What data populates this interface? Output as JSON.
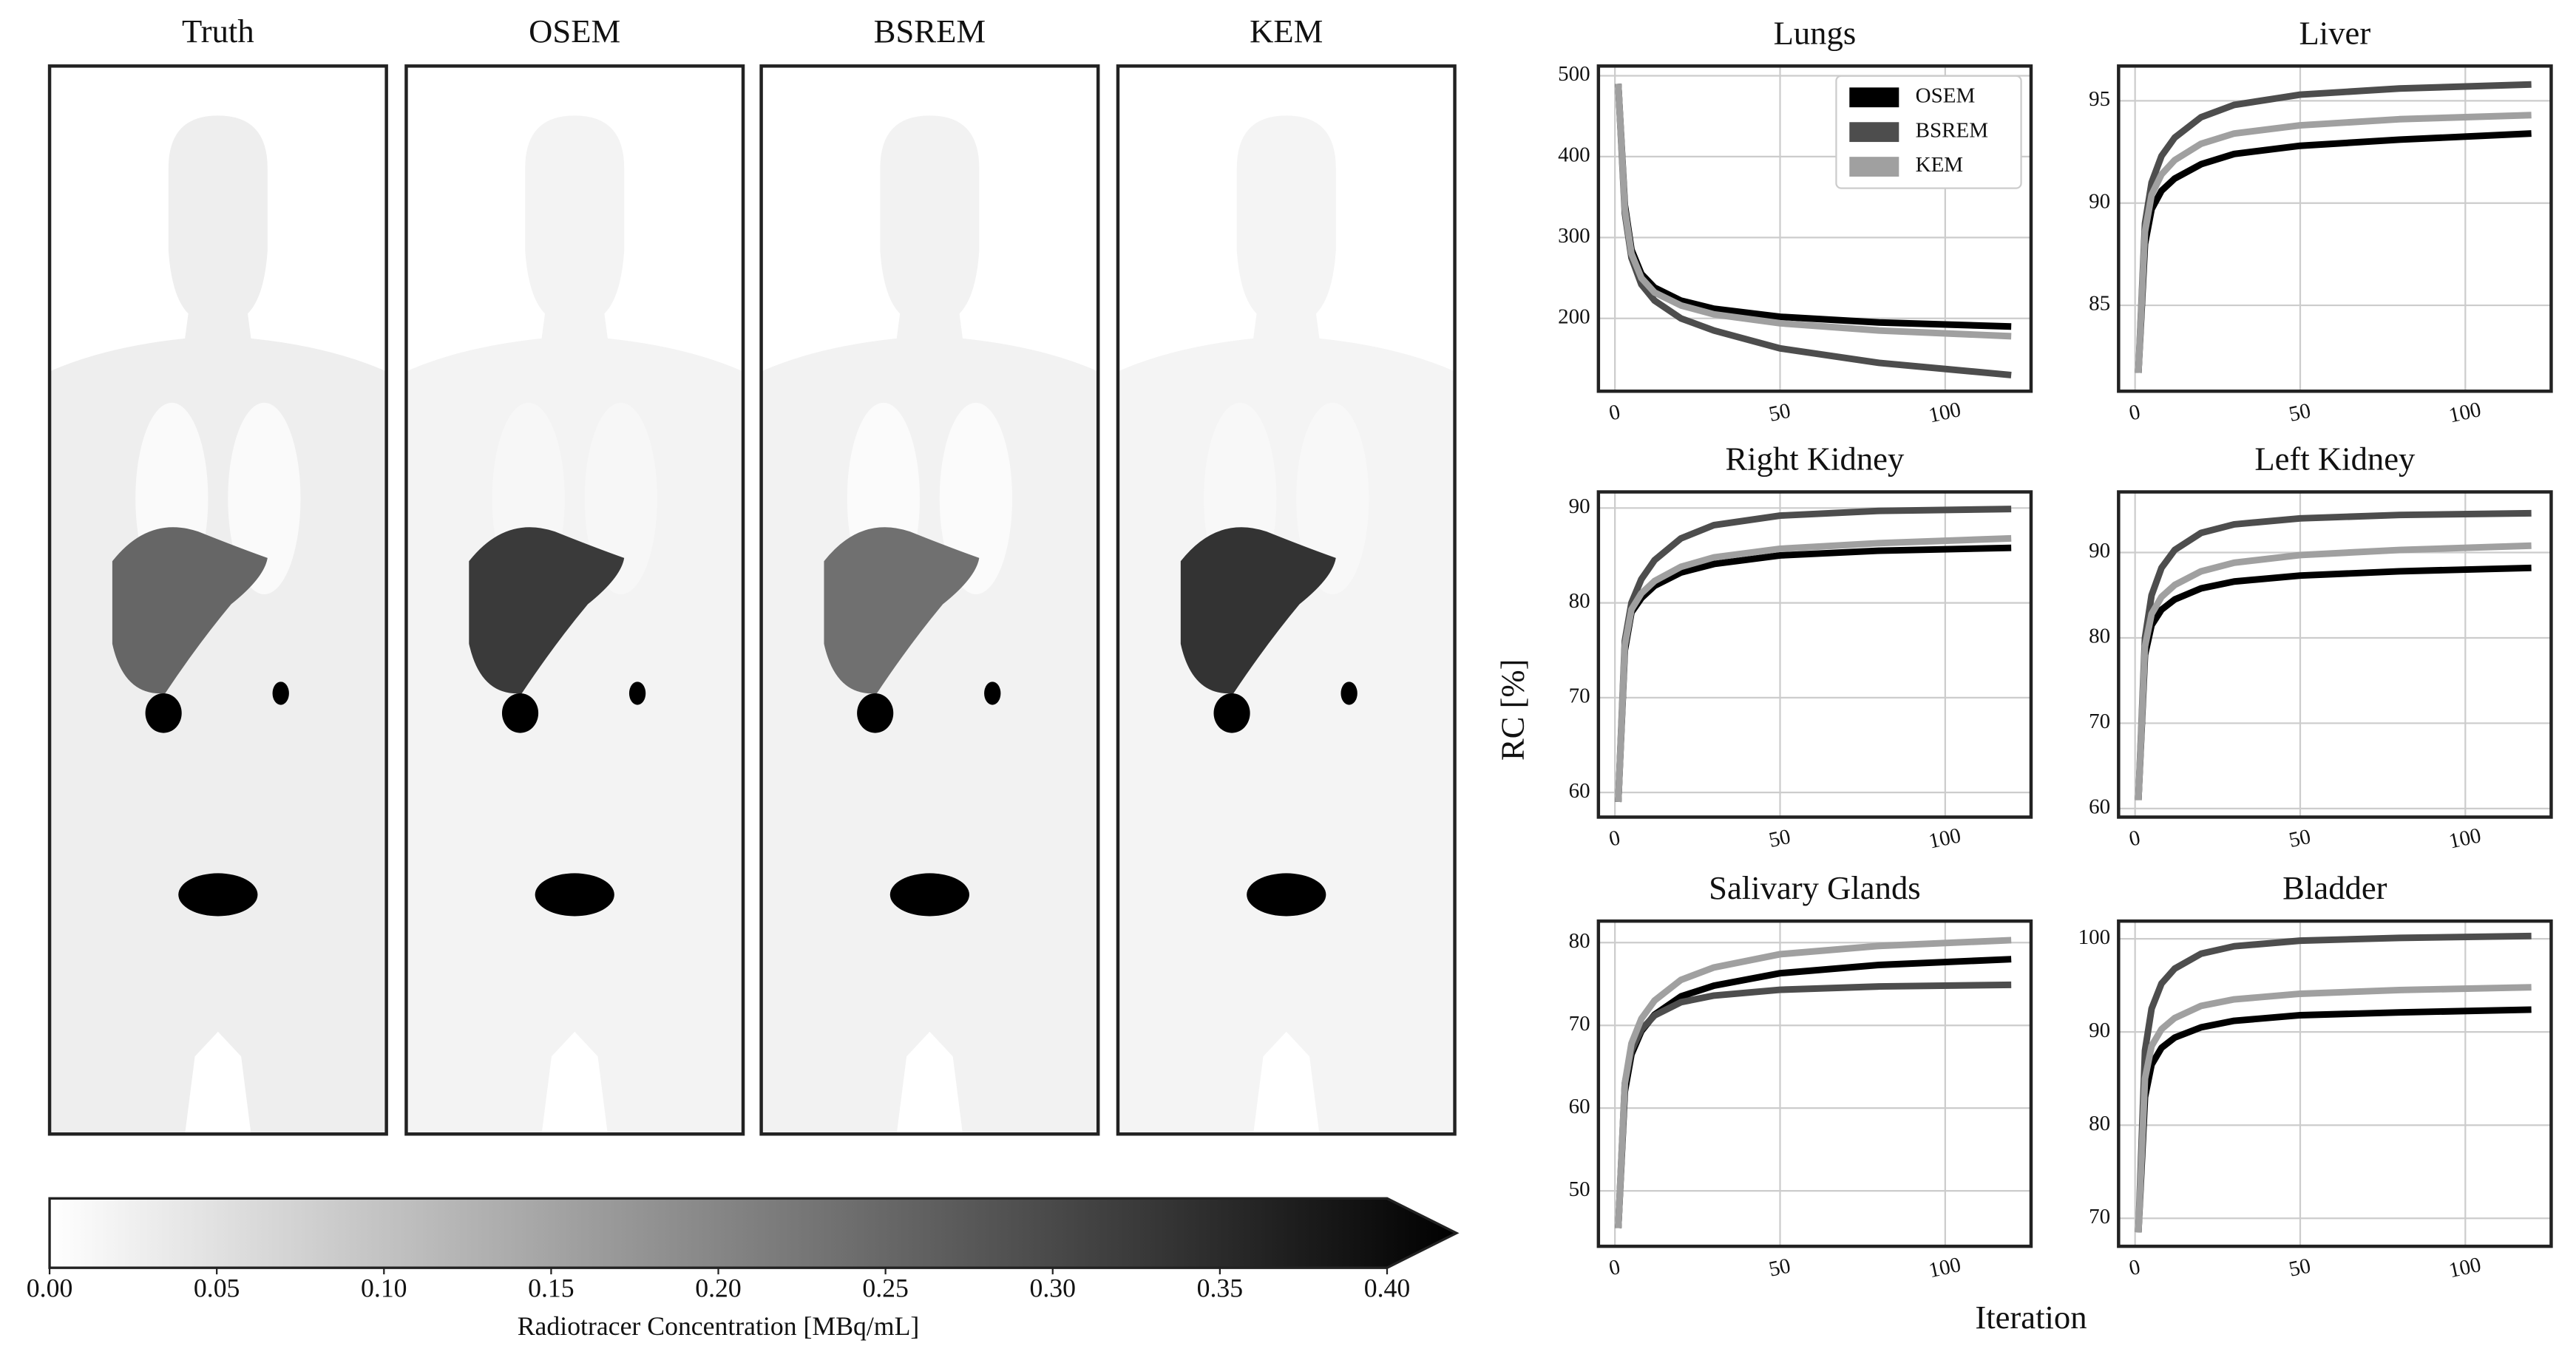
{
  "image_panels": {
    "titles": [
      "Truth",
      "OSEM",
      "BSREM",
      "KEM"
    ]
  },
  "colorbar": {
    "label": "Radiotracer Concentration [MBq/mL]",
    "lim": [
      0,
      0.4
    ],
    "ticks": [
      {
        "value": 0,
        "label": "0.00"
      },
      {
        "value": 0.05,
        "label": "0.05"
      },
      {
        "value": 0.1,
        "label": "0.10"
      },
      {
        "value": 0.15,
        "label": "0.15"
      },
      {
        "value": 0.2,
        "label": "0.20"
      },
      {
        "value": 0.25,
        "label": "0.25"
      },
      {
        "value": 0.3,
        "label": "0.30"
      },
      {
        "value": 0.35,
        "label": "0.35"
      },
      {
        "value": 0.4,
        "label": "0.40"
      }
    ]
  },
  "ylabel": "RC [%]",
  "xlabel": "Iteration",
  "chart_data": [
    {
      "type": "line",
      "title": "Lungs",
      "x": [
        1,
        3,
        5,
        8,
        12,
        20,
        30,
        50,
        80,
        120
      ],
      "xlim": [
        -5,
        126
      ],
      "xticks": [
        0,
        50,
        100
      ],
      "ylim": [
        110,
        512
      ],
      "yticks": [
        200,
        300,
        400,
        500
      ],
      "grid": true,
      "legend": "upper right",
      "series": [
        {
          "name": "OSEM",
          "color": "#000000",
          "values": [
            490,
            340,
            285,
            255,
            238,
            222,
            212,
            202,
            195,
            190
          ]
        },
        {
          "name": "BSREM",
          "color": "#4d4d4d",
          "values": [
            490,
            330,
            275,
            242,
            222,
            200,
            185,
            163,
            145,
            130
          ]
        },
        {
          "name": "KEM",
          "color": "#a0a0a0",
          "values": [
            490,
            335,
            280,
            250,
            232,
            216,
            205,
            194,
            185,
            178
          ]
        }
      ]
    },
    {
      "type": "line",
      "title": "Liver",
      "x": [
        1,
        3,
        5,
        8,
        12,
        20,
        30,
        50,
        80,
        120
      ],
      "xlim": [
        -5,
        126
      ],
      "xticks": [
        0,
        50,
        100
      ],
      "ylim": [
        80.8,
        96.7
      ],
      "yticks": [
        85,
        90,
        95
      ],
      "grid": true,
      "series": [
        {
          "color": "#000000",
          "values": [
            81.7,
            88,
            89.7,
            90.6,
            91.2,
            91.9,
            92.4,
            92.8,
            93.1,
            93.4
          ]
        },
        {
          "color": "#4d4d4d",
          "values": [
            81.7,
            89,
            91,
            92.3,
            93.2,
            94.2,
            94.8,
            95.3,
            95.6,
            95.8
          ]
        },
        {
          "color": "#a0a0a0",
          "values": [
            81.7,
            88.6,
            90.4,
            91.4,
            92.1,
            92.9,
            93.4,
            93.8,
            94.1,
            94.3
          ]
        }
      ]
    },
    {
      "type": "line",
      "title": "Right Kidney",
      "x": [
        1,
        3,
        5,
        8,
        12,
        20,
        30,
        50,
        80,
        120
      ],
      "xlim": [
        -5,
        126
      ],
      "xticks": [
        0,
        50,
        100
      ],
      "ylim": [
        57.4,
        91.7
      ],
      "yticks": [
        60,
        70,
        80,
        90
      ],
      "grid": true,
      "series": [
        {
          "color": "#000000",
          "values": [
            59,
            75,
            79,
            80.5,
            81.8,
            83.2,
            84.1,
            85,
            85.5,
            85.8
          ]
        },
        {
          "color": "#4d4d4d",
          "values": [
            59,
            76,
            80,
            82.5,
            84.5,
            86.8,
            88.2,
            89.2,
            89.7,
            89.9
          ]
        },
        {
          "color": "#a0a0a0",
          "values": [
            59,
            75.5,
            79.3,
            81,
            82.3,
            83.8,
            84.8,
            85.7,
            86.3,
            86.8
          ]
        }
      ]
    },
    {
      "type": "line",
      "title": "Left Kidney",
      "x": [
        1,
        3,
        5,
        8,
        12,
        20,
        30,
        50,
        80,
        120
      ],
      "xlim": [
        -5,
        126
      ],
      "xticks": [
        0,
        50,
        100
      ],
      "ylim": [
        59,
        97.1
      ],
      "yticks": [
        60,
        70,
        80,
        90
      ],
      "grid": true,
      "series": [
        {
          "color": "#000000",
          "values": [
            61,
            78,
            81.5,
            83.3,
            84.5,
            85.8,
            86.6,
            87.3,
            87.8,
            88.2
          ]
        },
        {
          "color": "#4d4d4d",
          "values": [
            61,
            80,
            85,
            88.2,
            90.3,
            92.3,
            93.3,
            94,
            94.4,
            94.6
          ]
        },
        {
          "color": "#a0a0a0",
          "values": [
            61,
            79,
            82.8,
            84.8,
            86.2,
            87.8,
            88.8,
            89.7,
            90.3,
            90.8
          ]
        }
      ]
    },
    {
      "type": "line",
      "title": "Salivary Glands",
      "x": [
        1,
        3,
        5,
        8,
        12,
        20,
        30,
        50,
        80,
        120
      ],
      "xlim": [
        -5,
        126
      ],
      "xticks": [
        0,
        50,
        100
      ],
      "ylim": [
        43.3,
        82.6
      ],
      "yticks": [
        50,
        60,
        70,
        80
      ],
      "grid": true,
      "series": [
        {
          "color": "#000000",
          "values": [
            45.5,
            62,
            66.5,
            69.3,
            71.3,
            73.5,
            74.8,
            76.3,
            77.3,
            78
          ]
        },
        {
          "color": "#4d4d4d",
          "values": [
            45.5,
            63,
            67,
            69.5,
            71.2,
            72.8,
            73.6,
            74.3,
            74.7,
            74.9
          ]
        },
        {
          "color": "#a0a0a0",
          "values": [
            45.5,
            63,
            67.8,
            70.8,
            73,
            75.5,
            77,
            78.6,
            79.6,
            80.3
          ]
        }
      ]
    },
    {
      "type": "line",
      "title": "Bladder",
      "x": [
        1,
        3,
        5,
        8,
        12,
        20,
        30,
        50,
        80,
        120
      ],
      "xlim": [
        -5,
        126
      ],
      "xticks": [
        0,
        50,
        100
      ],
      "ylim": [
        67,
        101.9
      ],
      "yticks": [
        70,
        80,
        90,
        100
      ],
      "grid": true,
      "series": [
        {
          "color": "#000000",
          "values": [
            68.5,
            83,
            86.5,
            88.3,
            89.4,
            90.5,
            91.2,
            91.8,
            92.1,
            92.4
          ]
        },
        {
          "color": "#4d4d4d",
          "values": [
            68.5,
            88,
            92.5,
            95.2,
            96.8,
            98.4,
            99.2,
            99.8,
            100.1,
            100.3
          ]
        },
        {
          "color": "#a0a0a0",
          "values": [
            68.5,
            85,
            88.5,
            90.3,
            91.5,
            92.8,
            93.5,
            94.1,
            94.5,
            94.8
          ]
        }
      ]
    }
  ]
}
